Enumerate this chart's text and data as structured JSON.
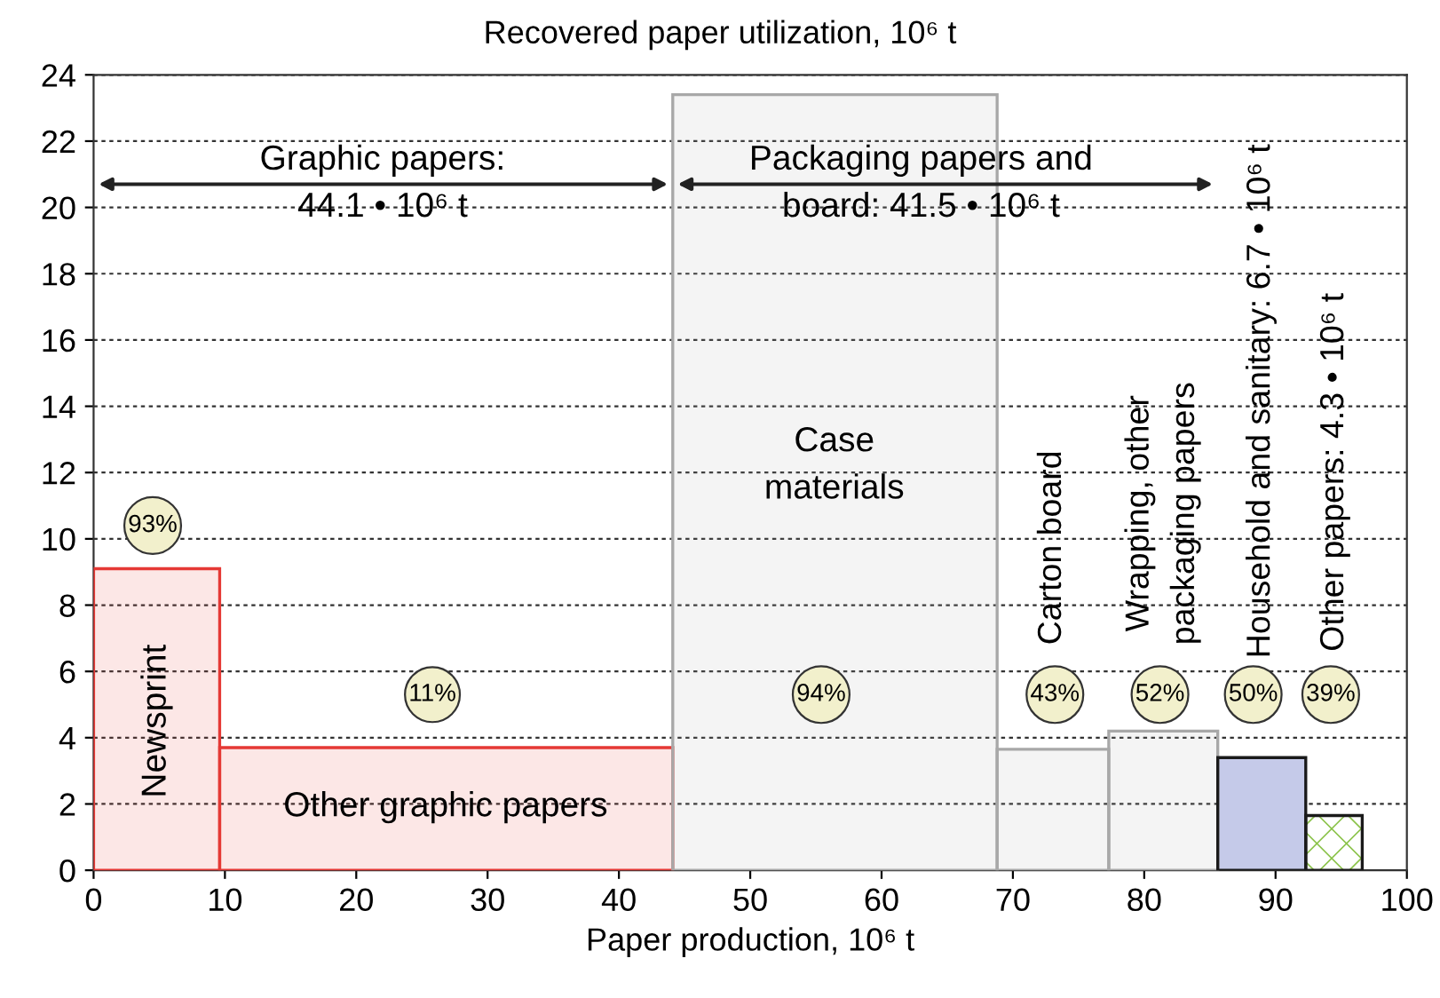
{
  "chart_data": {
    "type": "histogram",
    "ylabel": "Recovered paper utilization, 10⁶ t",
    "xlabel": "Paper production, 10⁶ t",
    "bins": [
      0,
      9.6,
      44.1,
      68.8,
      77.3,
      85.6,
      92.3,
      96.6
    ],
    "values": [
      9.1,
      3.7,
      23.4,
      3.65,
      4.2,
      3.4,
      1.65
    ],
    "colors": [
      "#e53935",
      "#e53935",
      "#a8a8a8",
      "#a8a8a8",
      "#a8a8a8",
      "#1a1a1a",
      "#1a1a1a"
    ],
    "xlim": [
      0,
      100
    ],
    "xticks": [
      0,
      10,
      20,
      30,
      40,
      50,
      60,
      70,
      80,
      90,
      100
    ],
    "ylim": [
      0,
      24
    ],
    "yticks": [
      0,
      2,
      4,
      6,
      8,
      10,
      12,
      14,
      16,
      18,
      20,
      22,
      24
    ],
    "grid": "y",
    "annotations": [
      "Newsprint",
      "Other graphic papers",
      "Case\nmaterials",
      "Carton board",
      "Wrapping, other\npackaging papers",
      "Household and sanitary: 6.7 • 10⁶ t",
      "Other papers: 4.3 • 10⁶ t",
      "Graphic papers:\n44.1 • 10⁶ t",
      "Packaging papers and\nboard: 41.5 • 10⁶ t",
      {
        "text": "93%",
        "x": 4.5,
        "y": 10.4
      },
      {
        "text": "11%",
        "x": 25.8,
        "y": 5.3
      },
      {
        "text": "94%",
        "x": 55.4,
        "y": 5.3
      },
      {
        "text": "43%",
        "x": 73.2,
        "y": 5.3
      },
      {
        "text": "52%",
        "x": 81.2,
        "y": 5.3
      },
      {
        "text": "50%",
        "x": 88.3,
        "y": 5.3
      },
      {
        "text": "39%",
        "x": 94.2,
        "y": 5.3
      }
    ]
  }
}
